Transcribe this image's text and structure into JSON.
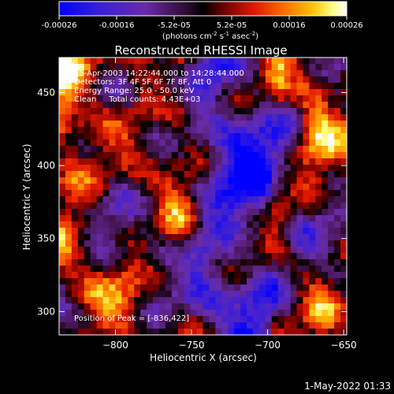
{
  "colorbar": {
    "ticks": [
      "-0.00026",
      "-0.00016",
      "-5.2e-05",
      "5.2e-05",
      "0.00016",
      "0.00026"
    ],
    "units_prefix": "(photons cm",
    "units_sup1": "-2",
    "units_mid1": " s",
    "units_sup2": "-1",
    "units_mid2": " asec",
    "units_sup3": "-2",
    "units_suffix": ")",
    "range": [
      -0.00026,
      0.00026
    ],
    "colormap": "rhessi-diverging (blue-purple-black-red-orange-yellow-white)"
  },
  "chart_data": {
    "type": "heatmap",
    "title": "Reconstructed RHESSI Image",
    "xlabel": "Heliocentric X (arcsec)",
    "ylabel": "Heliocentric Y (arcsec)",
    "xlim": [
      -837,
      -648
    ],
    "ylim": [
      284,
      474
    ],
    "xticks": [
      -800,
      -750,
      -700,
      -650
    ],
    "yticks": [
      300,
      350,
      400,
      450
    ],
    "xtick_labels": [
      "−800",
      "−750",
      "−700",
      "−650"
    ],
    "ytick_labels": [
      "300",
      "350",
      "400",
      "450"
    ],
    "annotations": [
      "25-Apr-2003 14:22:44.000 to 14:28:44.000",
      "Detectors: 3F 4F 5F 6F 7F 8F, Att 0",
      "Energy Range: 25.0 - 50.0 keV",
      "Clean     Total counts: 4.43E+03"
    ],
    "peak_label": "Position of Peak = [-836,422]",
    "peak_position": [
      -836,
      422
    ]
  },
  "footer": {
    "timestamp": "1-May-2022 01:33"
  }
}
